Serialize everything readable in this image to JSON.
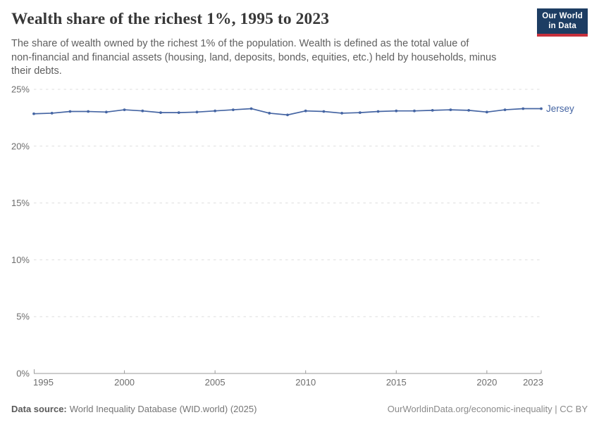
{
  "header": {
    "title": "Wealth share of the richest 1%, 1995 to 2023",
    "subtitle": "The share of wealth owned by the richest 1% of the population. Wealth is defined as the total value of\nnon-financial and financial assets (housing, land, deposits, bonds, equities, etc.) held by households, minus\ntheir debts.",
    "logo": {
      "line1": "Our World",
      "line2": "in Data",
      "bg": "#1d3d63",
      "accent": "#c7303c"
    }
  },
  "chart_data": {
    "type": "line",
    "title": "Wealth share of the richest 1%, 1995 to 2023",
    "unit": "%",
    "xlim": [
      1995,
      2023
    ],
    "ylim": [
      0,
      25
    ],
    "xticks": [
      1995,
      2000,
      2005,
      2010,
      2015,
      2020,
      2023
    ],
    "yticks": [
      0,
      5,
      10,
      15,
      20,
      25
    ],
    "grid": "horizontal-dashed",
    "legend_position": "end-of-line-label",
    "series": [
      {
        "name": "Jersey",
        "color": "#4565a3",
        "x": [
          1995,
          1996,
          1997,
          1998,
          1999,
          2000,
          2001,
          2002,
          2003,
          2004,
          2005,
          2006,
          2007,
          2008,
          2009,
          2010,
          2011,
          2012,
          2013,
          2014,
          2015,
          2016,
          2017,
          2018,
          2019,
          2020,
          2021,
          2022,
          2023
        ],
        "values": [
          22.85,
          22.9,
          23.05,
          23.05,
          23.0,
          23.2,
          23.1,
          22.95,
          22.95,
          23.0,
          23.1,
          23.2,
          23.3,
          22.9,
          22.75,
          23.1,
          23.05,
          22.9,
          22.95,
          23.05,
          23.1,
          23.1,
          23.15,
          23.2,
          23.15,
          23.0,
          23.2,
          23.3,
          23.3
        ]
      }
    ]
  },
  "footer": {
    "datasource_label": "Data source:",
    "datasource_value": "World Inequality Database (WID.world) (2025)",
    "license": "OurWorldinData.org/economic-inequality | CC BY"
  },
  "colors": {
    "gridline": "#dedede",
    "axis": "#999999",
    "tick_label": "#6e6e6e",
    "title": "#383838",
    "subtitle": "#5f5f5f"
  }
}
